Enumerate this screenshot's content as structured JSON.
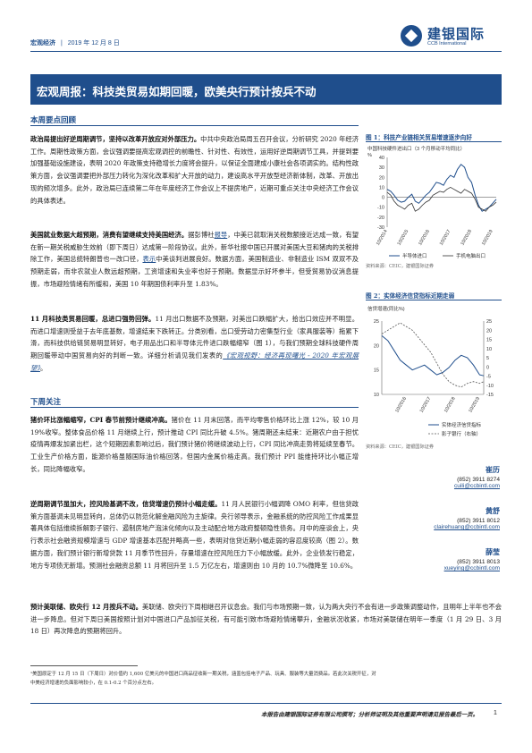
{
  "header": {
    "section": "宏观经济",
    "date": "2019 年 12 月 8 日",
    "logo_cn": "建银国际",
    "logo_en": "CCB International"
  },
  "banner": {
    "title": "宏观周报：科技类贸易如期回暖，欧美央行预计按兵不动"
  },
  "sections": {
    "highlights": "本周要点回顾",
    "watch": "下周关注"
  },
  "paragraphs": {
    "p1_bold": "政治局提出好逆周期调节，坚持以改革开放应对外部压力。",
    "p1_text": "中共中央政治局周五召开会议，分析研究 2020 年经济工作。周期性政策方面，会议强调要提高宏观调控的前瞻性、针对性、有效性，运用好逆周期调节工具，并提到要加强基础设施建设，表明 2020 年政策支持稳增长力度将会提升，以保证全面建成小康社会各项调实的。结构性政策方面，会议强调要把外部压力转化为深化改革和扩大开放的动力，建设高水平开放型经济新体制，改革、开放出现的频次增多。此外，政治局已连续第二年在年度经济工作会议上不提房地产，近期可重点关注中央经济工作会议的具体表述。",
    "p2_bold": "美国就业数据大超预期，消费有望继续支持美国经济。",
    "p2_a": "据彭博社",
    "p2_link1": "报导",
    "p2_b": "，中美已就取消关税数额接近达成一致，有望在新一期关税威胁生效前（即下周日）达成第一阶段协议。此外，新华社报中国已开展对美国大豆和猪肉的关税排除工作，美国总统特朗普也一改口径，",
    "p2_link2": "表示",
    "p2_c": "中美谈判进展良好。数据方面，美国制造业、非制造业 ISM 双双不及预期走弱，而非农就业人数远超预期，工资增速和失业率也好于预期。数据显示好坏参半，但受贸易协议消息提振，市场避险情绪有所缓和，美国 10 年期国债利率升至 1.83%。",
    "p3_bold": "11 月科技类贸易回暖，总进口强势回弹。",
    "p3_a": "11 月出口数据不及预期，对美出口跌幅扩大，拾出口效应并不明显。而进口增速则受益于去年底基数，增速结束下跌转正。分类别看，出口受劳动力密集型行业（家具服装等）拖累下滑，而科技供给链贸易明显转好，电子用品出口和半导体元件进口跌幅缩窄（图 1），与我们预期全球科技硬件周期回暖带动中国贸易向好的判断一致。详细分析请见我们发表的",
    "p3_link": "《宏观视野：经济再现曙光 - 2020 年宏观展望》",
    "p3_b": "。",
    "p4_bold": "猪价环比涨幅缩窄，CPI 春节前预计继续冲高。",
    "p4_text": "猪价在 11 月末回落，而平均零售价格环比上涨 12%，较 10 月 19%收窄。整体食品价格 11 月继续上行，预计推动 CPI 同比升破 4.5%。猪周期还未结束：近期农户由于担忧疫情再爆发加紧出栏，这个短期因素影响过后，我们预计猪价将继续波动上行，CPI 同比冲高走势将延续至春节。工业生产价格方面，能源价格虽随国际油价格回落，但国内金属价格走高。我们预计 PPI 能维持环比小幅正增长，同比降幅收窄。",
    "p5_bold": "逆周期调节虽加大，控风险基调不改，信贷增速仍预计小幅走缓。",
    "p5_text": "11 月人民银行小幅调降 OMO 利率，但信贷政策方面基调未见明显转向，总体仍以防范化解金融风险为主旋律。央行领导表示，金融系统的防控风险工作成果显著具体包括维续拆解影子银行、遏制房地产泡沫化倾向以及主动配合地方政府整顿隐性债务。月中的座谈会上，央行表示社会融资规模增速与 GDP 增速基本匹配并略高一些，表明对信贷近期小幅走弱的容忍度较高（图 2）。数据方面，我们预计银行新增贷款 11 月季节性回升，存量增速在控风险压力下小幅放缓。此外，企业债发行稳定，地方专项债无新增。预测社会融资总额 11 月将回升至 1.5 万亿左右，增速则由 10 月的 10.7%微降至 10.6%。",
    "p6_bold": "预计美联储、欧央行 12 月按兵不动。",
    "p6_text": "美联储、欧央行下周相继召开议息会。我们与市场预期一致，认为两大央行不会有进一步政策调整动作，且明年上半年也不会进一步降息。但对下周日美国按照计划对中国进口产品加征关税，有可能引致市场避险情绪攀升，金融状况收紧，市场对美联储在明年一季度（1 月 29 日、3 月 18 日）再次降息的预期将回升。"
  },
  "figures": {
    "fig1": {
      "title": "图 1：科技产业链相关贸易增速逐步向好",
      "source": "资料来源：CEIC，建银国际证券"
    },
    "fig2": {
      "title": "图 2：实体经济信贷指标近期走弱",
      "source": "资料来源：CEIC，建银国际证券"
    }
  },
  "contacts": [
    {
      "name": "崔历",
      "phone": "(852) 3911 8274",
      "email": "cuili@ccbintl.com"
    },
    {
      "name": "黄舒",
      "phone": "(852) 3911 8012",
      "email": "clairehuang@ccbintl.com"
    },
    {
      "name": "薛莹",
      "phone": "(852) 3911 8013",
      "email": "xueying@ccbintl.com"
    }
  ],
  "footnote": {
    "line1": "¹美国原定于 12 月 15 日（下周日）对价值约 1,600 亿美元的中国进口商品征收新一期关税，涵盖包括电子产品、玩具、服装等大量消费品。若此次关税开征，对",
    "line2": "中美经济增速的负面影响较小，在 0.1-0.2 个百分点左右。"
  },
  "disclaimer": "本报告由建银国际证券有限公司撰写；分析师证明及其他重要声明请见报告最后一页。",
  "page_number": "1",
  "chart_data": [
    {
      "type": "line",
      "ylabel": "中国科技硬件进出口（3 个月移动平均同比）",
      "yunit": "%",
      "ylim": [
        -30,
        40
      ],
      "yticks": [
        -30,
        -20,
        -10,
        0,
        10,
        20,
        30,
        40
      ],
      "xticks": [
        "10/2014",
        "10/2015",
        "10/2016",
        "10/2017",
        "10/2018",
        "10/2019"
      ],
      "xrange": [
        2014.75,
        2019.92
      ],
      "series": [
        {
          "name": "半导体进口",
          "color": "#1f4e8c",
          "x": [
            2014.75,
            2014.92,
            2015.08,
            2015.25,
            2015.42,
            2015.58,
            2015.75,
            2015.92,
            2016.08,
            2016.25,
            2016.42,
            2016.58,
            2016.75,
            2016.92,
            2017.08,
            2017.25,
            2017.42,
            2017.58,
            2017.75,
            2017.92,
            2018.08,
            2018.25,
            2018.42,
            2018.58,
            2018.75,
            2018.92,
            2019.08,
            2019.25,
            2019.42,
            2019.58,
            2019.75,
            2019.92
          ],
          "y": [
            8,
            6,
            2,
            -3,
            -5,
            -4,
            0,
            3,
            -4,
            -6,
            -2,
            2,
            5,
            10,
            15,
            14,
            12,
            18,
            22,
            20,
            28,
            33,
            30,
            20,
            15,
            2,
            -8,
            -14,
            -12,
            -10,
            -6,
            -2
          ]
        },
        {
          "name": "手机电脑出口",
          "color": "#333333",
          "x": [
            2014.75,
            2014.92,
            2015.08,
            2015.25,
            2015.42,
            2015.58,
            2015.75,
            2015.92,
            2016.08,
            2016.25,
            2016.42,
            2016.58,
            2016.75,
            2016.92,
            2017.08,
            2017.25,
            2017.42,
            2017.58,
            2017.75,
            2017.92,
            2018.08,
            2018.25,
            2018.42,
            2018.58,
            2018.75,
            2018.92,
            2019.08,
            2019.25,
            2019.42,
            2019.58,
            2019.75,
            2019.92
          ],
          "y": [
            5,
            2,
            -4,
            -8,
            -10,
            -12,
            -8,
            -6,
            -14,
            -12,
            -8,
            -5,
            -3,
            2,
            4,
            6,
            5,
            8,
            10,
            8,
            6,
            4,
            8,
            6,
            4,
            -2,
            -10,
            -12,
            -14,
            -10,
            -8,
            -5
          ]
        }
      ]
    },
    {
      "type": "line",
      "ylabel": "信贷增速(同比%)",
      "ylim": [
        10,
        25
      ],
      "yticks": [
        10,
        15,
        20,
        25
      ],
      "y2lim": [
        -15,
        25
      ],
      "y2ticks": [
        -15,
        -10,
        -5,
        0,
        5,
        10,
        15,
        20,
        25
      ],
      "xticks": [
        "10/2016",
        "10/2017",
        "10/2018",
        "10/2019"
      ],
      "xrange": [
        2015.75,
        2019.92
      ],
      "series": [
        {
          "name": "实体经济信贷指标",
          "color": "#1f4e8c",
          "axis": "left",
          "x": [
            2015.75,
            2016.0,
            2016.25,
            2016.5,
            2016.75,
            2017.0,
            2017.25,
            2017.5,
            2017.75,
            2018.0,
            2018.25,
            2018.5,
            2018.75,
            2019.0,
            2019.25,
            2019.5,
            2019.75,
            2019.92
          ],
          "y": [
            22,
            21,
            19,
            17,
            16,
            15,
            15.5,
            16,
            15,
            14,
            14.5,
            15.5,
            17,
            18,
            17.5,
            16,
            14,
            13.8
          ]
        },
        {
          "name": "影子银行（右轴）",
          "color": "#555555",
          "axis": "right",
          "x": [
            2015.75,
            2016.0,
            2016.25,
            2016.5,
            2016.75,
            2017.0,
            2017.25,
            2017.5,
            2017.75,
            2018.0,
            2018.25,
            2018.5,
            2018.75,
            2019.0,
            2019.25,
            2019.5,
            2019.75,
            2019.92
          ],
          "y": [
            18,
            20,
            22,
            24,
            22,
            20,
            16,
            12,
            8,
            2,
            -4,
            -8,
            -10,
            -11,
            -9,
            -8,
            -9,
            -8
          ]
        }
      ]
    }
  ]
}
